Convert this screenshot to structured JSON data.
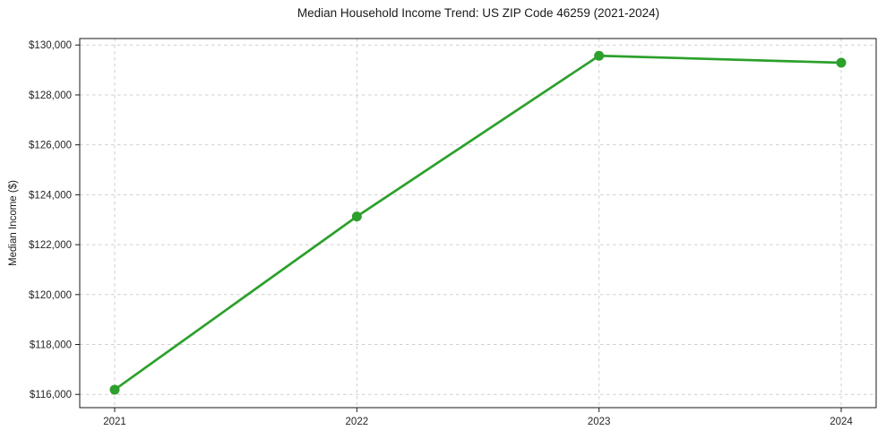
{
  "chart_data": {
    "type": "line",
    "title": "Median Household Income Trend: US ZIP Code 46259 (2021-2024)",
    "xlabel": "",
    "ylabel": "Median Income ($)",
    "categories": [
      "2021",
      "2022",
      "2023",
      "2024"
    ],
    "series": [
      {
        "values": [
          116190,
          123130,
          129570,
          129290
        ],
        "color": "#2ca02c",
        "marker": "circle",
        "line_width": 2.7,
        "marker_radius": 5.5
      }
    ],
    "ylim": [
      115470,
      130260
    ],
    "y_ticks": [
      116000,
      118000,
      120000,
      122000,
      124000,
      126000,
      128000,
      130000
    ],
    "y_tick_labels": [
      "$116,000",
      "$118,000",
      "$120,000",
      "$122,000",
      "$124,000",
      "$126,000",
      "$128,000",
      "$130,000"
    ],
    "grid": true,
    "grid_line_style": "dashed",
    "legend_position": "none",
    "colors": {
      "line": "#2ca02c",
      "grid": "#cfcfcf",
      "spine": "#1a1a1a",
      "tick_text": "#262626",
      "background": "#ffffff"
    }
  }
}
